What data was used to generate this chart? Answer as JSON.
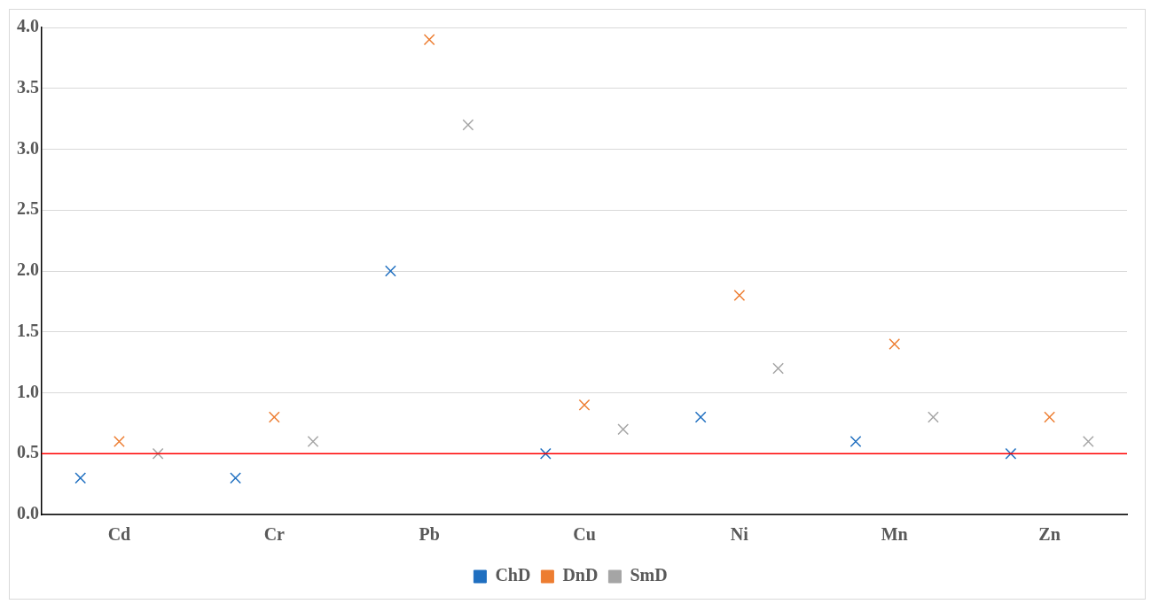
{
  "chart_data": {
    "type": "scatter",
    "categories": [
      "Cd",
      "Cr",
      "Pb",
      "Cu",
      "Ni",
      "Mn",
      "Zn"
    ],
    "series": [
      {
        "name": "ChD",
        "color": "#1f6fc0",
        "values": [
          0.3,
          0.3,
          2.0,
          0.5,
          0.8,
          0.6,
          0.5
        ]
      },
      {
        "name": "DnD",
        "color": "#ed7d31",
        "values": [
          0.6,
          0.8,
          3.9,
          0.9,
          1.8,
          1.4,
          0.8
        ]
      },
      {
        "name": "SmD",
        "color": "#a5a5a5",
        "values": [
          0.5,
          0.6,
          3.2,
          0.7,
          1.2,
          0.8,
          0.6
        ]
      }
    ],
    "ylim": [
      0,
      4
    ],
    "yticks": [
      {
        "value": 0,
        "label": "0.0"
      },
      {
        "value": 0.5,
        "label": "0.5"
      },
      {
        "value": 1,
        "label": "1.0"
      },
      {
        "value": 1.5,
        "label": "1.5"
      },
      {
        "value": 2,
        "label": "2.0"
      },
      {
        "value": 2.5,
        "label": "2.5"
      },
      {
        "value": 3,
        "label": "3.0"
      },
      {
        "value": 3.5,
        "label": "3.5"
      },
      {
        "value": 4,
        "label": "4.0"
      }
    ],
    "ref_lines": [
      {
        "axis": "y",
        "value": 0.5,
        "color": "#ff0000"
      }
    ],
    "grid": "y",
    "legend": "bottom",
    "marker": "cross"
  }
}
